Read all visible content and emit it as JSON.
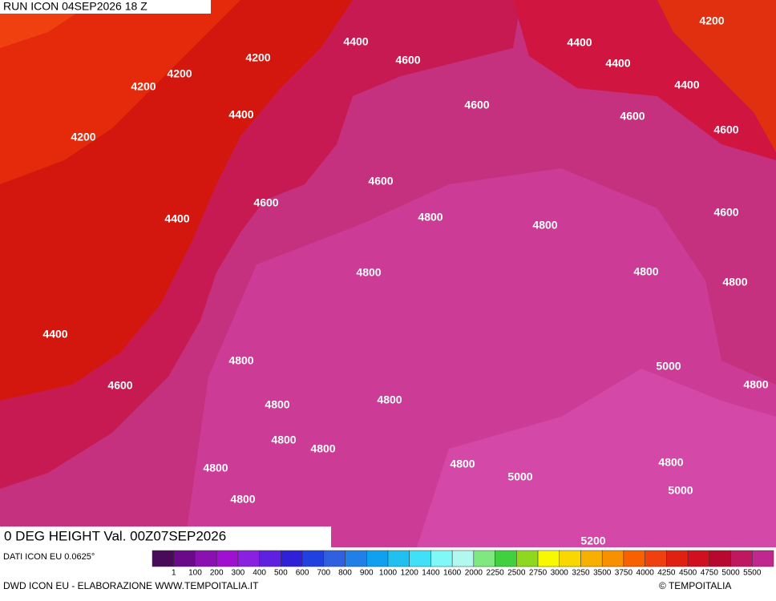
{
  "header": {
    "run": "RUN ICON 04SEP2026 18 Z"
  },
  "map": {
    "title": "0 DEG HEIGHT Val. 00Z07SEP2026",
    "contour_labels": [
      4400,
      4600,
      4200,
      4200,
      4200,
      4400,
      4200,
      4600,
      4400,
      4400,
      4200,
      4400,
      4600,
      4600,
      4600,
      4600,
      4400,
      4800,
      4800,
      4600,
      4800,
      4800,
      4800,
      4400,
      4800,
      5000,
      4800,
      4600,
      4800,
      4800,
      4800,
      4800,
      4800,
      4800,
      4800,
      5000,
      5000,
      4800,
      5200
    ]
  },
  "legend": {
    "source": "DATI ICON EU 0.0625°",
    "labels": [
      1,
      100,
      200,
      300,
      400,
      500,
      600,
      700,
      800,
      900,
      1000,
      1200,
      1400,
      1600,
      2000,
      2250,
      2500,
      2750,
      3000,
      3250,
      3500,
      3750,
      4000,
      4250,
      4500,
      4750,
      5000,
      5500
    ]
  },
  "footer": {
    "credit": "DWD ICON EU - ELABORAZIONE WWW.TEMPOITALIA.IT",
    "copyright": "© TEMPOITALIA"
  }
}
